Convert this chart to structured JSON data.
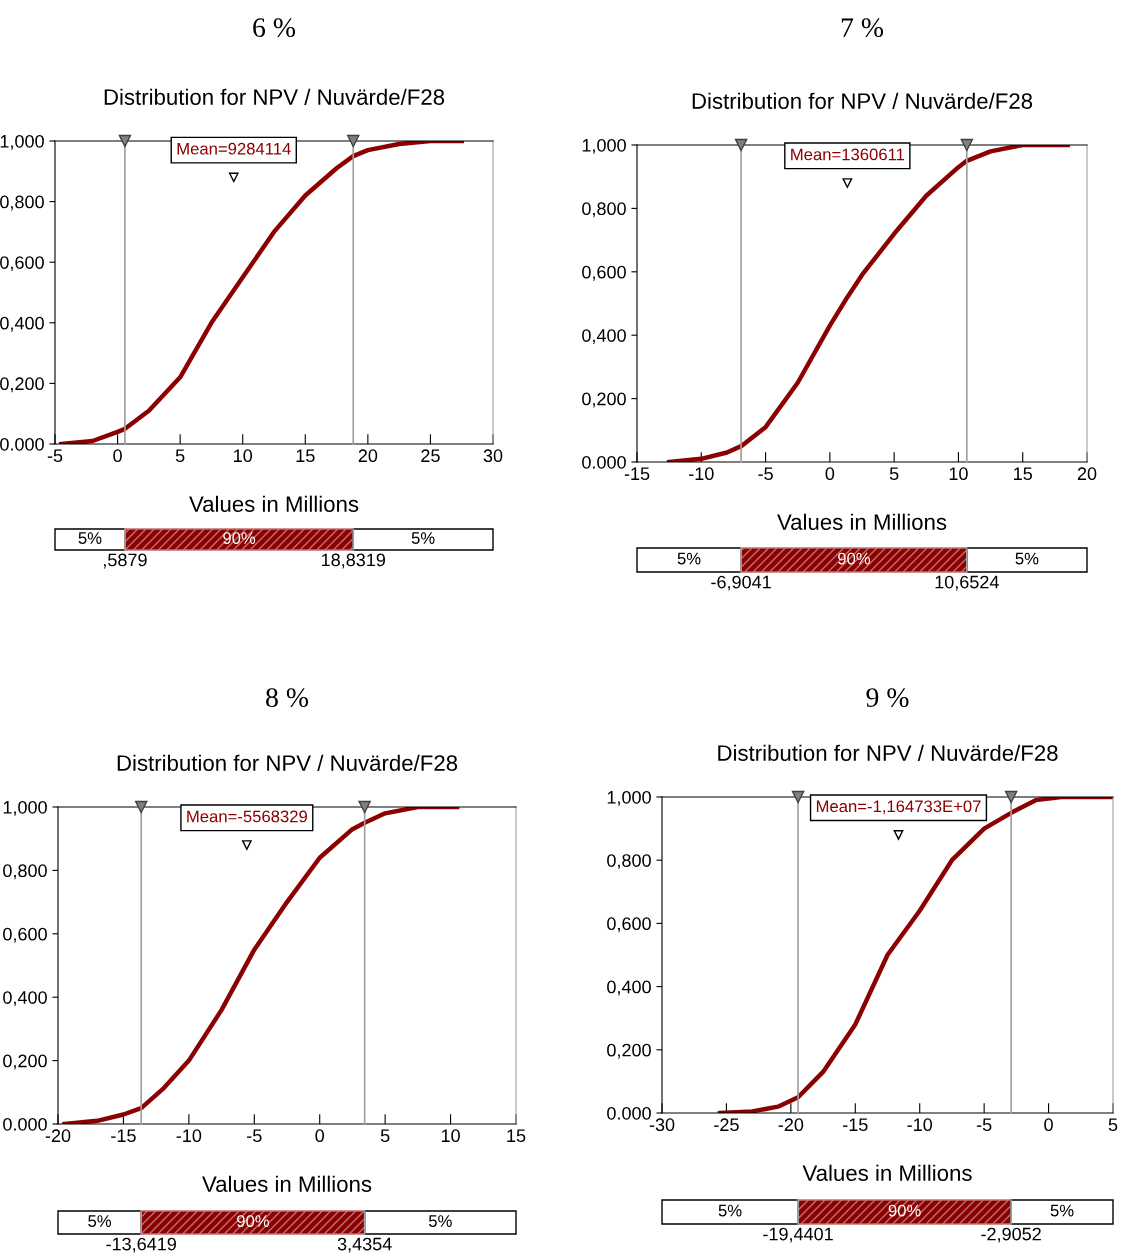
{
  "chart_data": [
    {
      "type": "line",
      "title": "6 %",
      "subtitle": "Distribution for NPV / Nuvärde/F28",
      "xlabel": "Values in Millions",
      "xlim": [
        -5,
        30
      ],
      "xticks": [
        -5,
        0,
        5,
        10,
        15,
        20,
        25,
        30
      ],
      "ylim": [
        0,
        1
      ],
      "yticks": [
        {
          "value": 0,
          "label": "0.000"
        },
        {
          "value": 0.2,
          "label": "0,200"
        },
        {
          "value": 0.4,
          "label": "0,400"
        },
        {
          "value": 0.6,
          "label": "0,600"
        },
        {
          "value": 0.8,
          "label": "0,800"
        },
        {
          "value": 1,
          "label": "1,000"
        }
      ],
      "grid": false,
      "legend": false,
      "marker": "none",
      "line_style": "solid",
      "series": [
        {
          "color": "#8b0000",
          "x": [
            -4.5,
            -2,
            0,
            0.59,
            2.5,
            5,
            7.5,
            10,
            12.5,
            15,
            17.5,
            18.83,
            20,
            22.5,
            25,
            27.5
          ],
          "values": [
            0,
            0.01,
            0.04,
            0.05,
            0.11,
            0.22,
            0.4,
            0.55,
            0.7,
            0.82,
            0.91,
            0.95,
            0.97,
            0.99,
            1,
            1
          ]
        }
      ],
      "ref_lines": [
        {
          "axis": "x",
          "value": 0.5879,
          "color": "#a0a0a0"
        },
        {
          "axis": "x",
          "value": 18.8319,
          "color": "#a0a0a0"
        }
      ],
      "annotations": [
        {
          "text": "Mean=9284114",
          "x": 9.284114,
          "y": 0.88
        },
        "5%",
        "90%",
        "5%",
        ",5879",
        "18,8319"
      ]
    },
    {
      "type": "line",
      "title": "7 %",
      "subtitle": "Distribution for NPV / Nuvärde/F28",
      "xlabel": "Values in Millions",
      "xlim": [
        -15,
        20
      ],
      "xticks": [
        -15,
        -10,
        -5,
        0,
        5,
        10,
        15,
        20
      ],
      "ylim": [
        0,
        1
      ],
      "yticks": [
        {
          "value": 0,
          "label": "0.000"
        },
        {
          "value": 0.2,
          "label": "0,200"
        },
        {
          "value": 0.4,
          "label": "0,400"
        },
        {
          "value": 0.6,
          "label": "0,600"
        },
        {
          "value": 0.8,
          "label": "0,800"
        },
        {
          "value": 1,
          "label": "1,000"
        }
      ],
      "grid": false,
      "legend": false,
      "marker": "none",
      "line_style": "solid",
      "series": [
        {
          "color": "#8b0000",
          "x": [
            -12.5,
            -10,
            -8,
            -6.9,
            -5,
            -2.5,
            0,
            1.36,
            2.5,
            5,
            7.5,
            10,
            10.65,
            12.5,
            15,
            18.5
          ],
          "values": [
            0,
            0.01,
            0.03,
            0.05,
            0.11,
            0.25,
            0.43,
            0.52,
            0.59,
            0.72,
            0.84,
            0.93,
            0.95,
            0.98,
            1,
            1
          ]
        }
      ],
      "ref_lines": [
        {
          "axis": "x",
          "value": -6.9041,
          "color": "#a0a0a0"
        },
        {
          "axis": "x",
          "value": 10.6524,
          "color": "#a0a0a0"
        }
      ],
      "annotations": [
        {
          "text": "Mean=1360611",
          "x": 1.360611,
          "y": 0.88
        },
        "5%",
        "90%",
        "5%",
        "-6,9041",
        "10,6524"
      ]
    },
    {
      "type": "line",
      "title": "8 %",
      "subtitle": "Distribution for NPV / Nuvärde/F28",
      "xlabel": "Values in Millions",
      "xlim": [
        -20,
        15
      ],
      "xticks": [
        -20,
        -15,
        -10,
        -5,
        0,
        5,
        10,
        15
      ],
      "ylim": [
        0,
        1
      ],
      "yticks": [
        {
          "value": 0,
          "label": "0.000"
        },
        {
          "value": 0.2,
          "label": "0,200"
        },
        {
          "value": 0.4,
          "label": "0,400"
        },
        {
          "value": 0.6,
          "label": "0,600"
        },
        {
          "value": 0.8,
          "label": "0,800"
        },
        {
          "value": 1,
          "label": "1,000"
        }
      ],
      "grid": false,
      "legend": false,
      "marker": "none",
      "line_style": "solid",
      "series": [
        {
          "color": "#8b0000",
          "x": [
            -19.5,
            -17,
            -15,
            -13.64,
            -12,
            -10,
            -7.5,
            -5,
            -2.5,
            0,
            2.5,
            3.44,
            5,
            7.5,
            10.5
          ],
          "values": [
            0,
            0.01,
            0.03,
            0.05,
            0.11,
            0.2,
            0.36,
            0.55,
            0.7,
            0.84,
            0.93,
            0.95,
            0.98,
            1,
            1
          ]
        }
      ],
      "ref_lines": [
        {
          "axis": "x",
          "value": -13.6419,
          "color": "#a0a0a0"
        },
        {
          "axis": "x",
          "value": 3.4354,
          "color": "#a0a0a0"
        }
      ],
      "annotations": [
        {
          "text": "Mean=-5568329",
          "x": -5.568329,
          "y": 0.88
        },
        "5%",
        "90%",
        "5%",
        "-13,6419",
        "3,4354"
      ]
    },
    {
      "type": "line",
      "title": "9 %",
      "subtitle": "Distribution for NPV / Nuvärde/F28",
      "xlabel": "Values in Millions",
      "xlim": [
        -30,
        5
      ],
      "xticks": [
        -30,
        -25,
        -20,
        -15,
        -10,
        -5,
        0,
        5
      ],
      "ylim": [
        0,
        1
      ],
      "yticks": [
        {
          "value": 0,
          "label": "0.000"
        },
        {
          "value": 0.2,
          "label": "0,200"
        },
        {
          "value": 0.4,
          "label": "0,400"
        },
        {
          "value": 0.6,
          "label": "0,600"
        },
        {
          "value": 0.8,
          "label": "0,800"
        },
        {
          "value": 1,
          "label": "1,000"
        }
      ],
      "grid": false,
      "legend": false,
      "marker": "none",
      "line_style": "solid",
      "series": [
        {
          "color": "#8b0000",
          "x": [
            -25.5,
            -23,
            -21,
            -19.44,
            -17.5,
            -15,
            -12.5,
            -10,
            -7.5,
            -5,
            -2.9,
            -1,
            1,
            5
          ],
          "values": [
            0,
            0.005,
            0.02,
            0.05,
            0.13,
            0.28,
            0.5,
            0.64,
            0.8,
            0.9,
            0.95,
            0.99,
            1,
            1
          ]
        }
      ],
      "ref_lines": [
        {
          "axis": "x",
          "value": -19.4401,
          "color": "#a0a0a0"
        },
        {
          "axis": "x",
          "value": -2.9052,
          "color": "#a0a0a0"
        }
      ],
      "annotations": [
        {
          "text": "Mean=-1,164733E+07",
          "x": -11.64733,
          "y": 0.88
        },
        "5%",
        "90%",
        "5%",
        "-19,4401",
        "-2,9052"
      ]
    }
  ]
}
